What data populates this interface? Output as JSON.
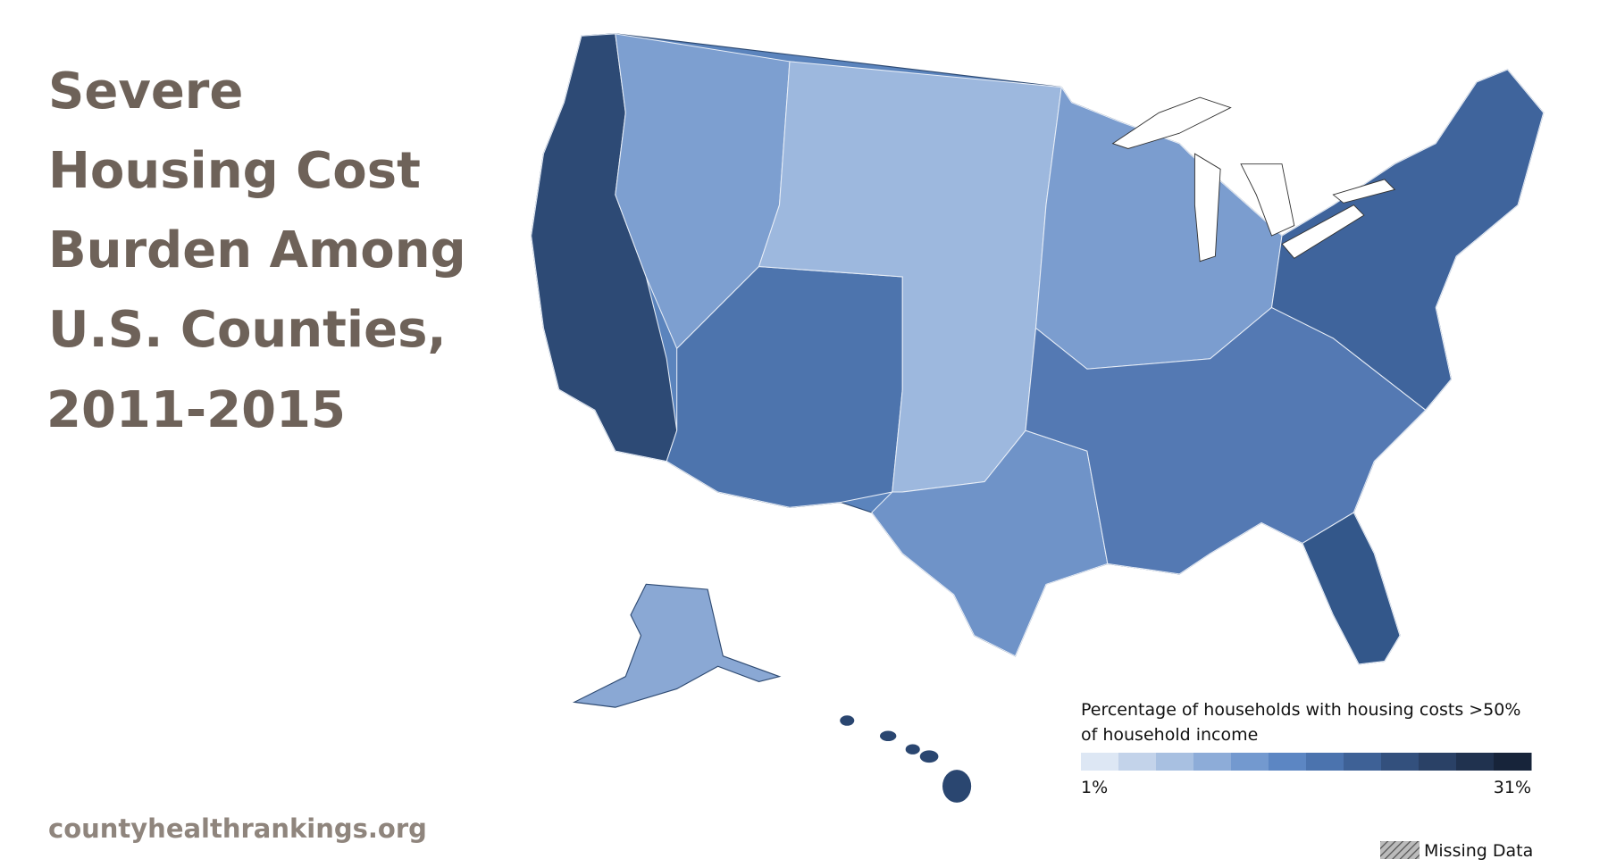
{
  "title": [
    "Severe",
    "Housing Cost",
    "Burden Among",
    "U.S. Counties,",
    "2011-2015"
  ],
  "source": "countyhealthrankings.org",
  "legend": {
    "title": [
      "Percentage of households with housing costs >50%",
      "of household income"
    ],
    "colors": [
      "#dde7f4",
      "#c3d3ea",
      "#a8c0e1",
      "#8dacd8",
      "#7399cf",
      "#5c86c3",
      "#4b73ae",
      "#3e6196",
      "#33507d",
      "#2a4166",
      "#20324f",
      "#17243a"
    ],
    "range": [
      1,
      31
    ],
    "ticks": [
      {
        "value": 1,
        "label": "1%"
      },
      {
        "value": 31,
        "label": "31%"
      }
    ],
    "missing": "Missing Data"
  }
}
